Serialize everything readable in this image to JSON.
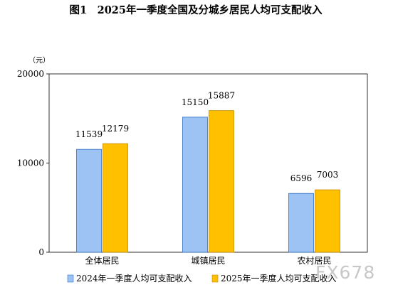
{
  "title": "图1　2025年一季度全国及分城乡居民人均可支配收入",
  "watermark": "FX678",
  "chart_data": {
    "type": "bar",
    "title": "图1　2025年一季度全国及分城乡居民人均可支配收入",
    "unit_label": "（元）",
    "categories": [
      "全体居民",
      "城镇居民",
      "农村居民"
    ],
    "series": [
      {
        "name": "2024年一季度人均可支配收入",
        "values": [
          11539,
          15150,
          6596
        ],
        "color": "#9dc3f5",
        "stroke": "#2e6fc4"
      },
      {
        "name": "2025年一季度人均可支配收入",
        "values": [
          12179,
          15887,
          7003
        ],
        "color": "#ffc000",
        "stroke": "#c48a00"
      }
    ],
    "ylim": [
      0,
      20000
    ],
    "yticks": [
      0,
      10000,
      20000
    ],
    "grid": false,
    "legend_position": "bottom"
  }
}
